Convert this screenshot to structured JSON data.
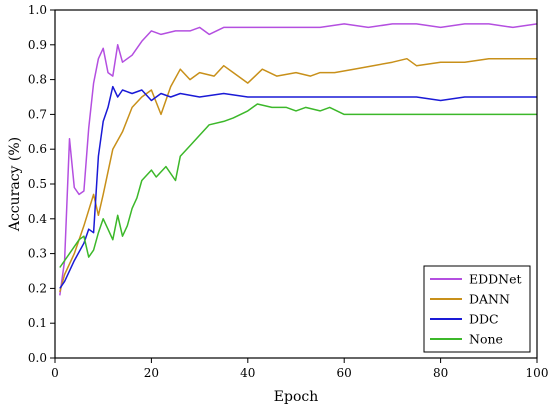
{
  "chart_data": {
    "type": "line",
    "xlabel": "Epoch",
    "ylabel": "Accuracy (%)",
    "xlim": [
      0,
      100
    ],
    "ylim": [
      0.0,
      1.0
    ],
    "xticks": [
      0,
      20,
      40,
      60,
      80,
      100
    ],
    "yticks": [
      0.0,
      0.1,
      0.2,
      0.3,
      0.4,
      0.5,
      0.6,
      0.7,
      0.8,
      0.9,
      1.0
    ],
    "ytick_labels": [
      "0.0",
      "0.1",
      "0.2",
      "0.3",
      "0.4",
      "0.5",
      "0.6",
      "0.7",
      "0.8",
      "0.9",
      "1.0"
    ],
    "legend_position": "bottom-right",
    "grid": false,
    "series": [
      {
        "name": "EDDNet",
        "color": "#b44fe0",
        "x": [
          1,
          2,
          3,
          4,
          5,
          6,
          7,
          8,
          9,
          10,
          11,
          12,
          13,
          14,
          15,
          16,
          18,
          20,
          22,
          25,
          28,
          30,
          32,
          35,
          40,
          45,
          50,
          55,
          60,
          65,
          70,
          75,
          80,
          85,
          90,
          95,
          100
        ],
        "y": [
          0.18,
          0.28,
          0.63,
          0.49,
          0.47,
          0.48,
          0.66,
          0.79,
          0.86,
          0.89,
          0.82,
          0.81,
          0.9,
          0.85,
          0.86,
          0.87,
          0.91,
          0.94,
          0.93,
          0.94,
          0.94,
          0.95,
          0.93,
          0.95,
          0.95,
          0.95,
          0.95,
          0.95,
          0.96,
          0.95,
          0.96,
          0.96,
          0.95,
          0.96,
          0.96,
          0.95,
          0.96
        ]
      },
      {
        "name": "DANN",
        "color": "#c8901a",
        "x": [
          1,
          2,
          4,
          6,
          8,
          9,
          10,
          12,
          14,
          16,
          18,
          20,
          22,
          24,
          26,
          28,
          30,
          33,
          35,
          37,
          40,
          43,
          46,
          50,
          53,
          55,
          58,
          62,
          66,
          70,
          73,
          75,
          80,
          85,
          90,
          95,
          100
        ],
        "y": [
          0.19,
          0.24,
          0.3,
          0.38,
          0.47,
          0.41,
          0.47,
          0.6,
          0.65,
          0.72,
          0.75,
          0.77,
          0.7,
          0.78,
          0.83,
          0.8,
          0.82,
          0.81,
          0.84,
          0.82,
          0.79,
          0.83,
          0.81,
          0.82,
          0.81,
          0.82,
          0.82,
          0.83,
          0.84,
          0.85,
          0.86,
          0.84,
          0.85,
          0.85,
          0.86,
          0.86,
          0.86
        ]
      },
      {
        "name": "DDC",
        "color": "#1a1ad6",
        "x": [
          1,
          2,
          4,
          6,
          7,
          8,
          9,
          10,
          11,
          12,
          13,
          14,
          16,
          18,
          20,
          22,
          24,
          26,
          30,
          35,
          40,
          45,
          50,
          55,
          60,
          65,
          70,
          75,
          80,
          85,
          90,
          95,
          100
        ],
        "y": [
          0.2,
          0.22,
          0.28,
          0.33,
          0.37,
          0.36,
          0.58,
          0.68,
          0.72,
          0.78,
          0.75,
          0.77,
          0.76,
          0.77,
          0.74,
          0.76,
          0.75,
          0.76,
          0.75,
          0.76,
          0.75,
          0.75,
          0.75,
          0.75,
          0.75,
          0.75,
          0.75,
          0.75,
          0.74,
          0.75,
          0.75,
          0.75,
          0.75
        ]
      },
      {
        "name": "None",
        "color": "#3cb82a",
        "x": [
          1,
          3,
          5,
          6,
          7,
          8,
          9,
          10,
          11,
          12,
          13,
          14,
          15,
          16,
          17,
          18,
          20,
          21,
          23,
          25,
          26,
          28,
          30,
          32,
          35,
          37,
          40,
          42,
          45,
          48,
          50,
          52,
          55,
          57,
          60,
          65,
          70,
          75,
          80,
          85,
          90,
          95,
          100
        ],
        "y": [
          0.26,
          0.3,
          0.34,
          0.35,
          0.29,
          0.31,
          0.36,
          0.4,
          0.37,
          0.34,
          0.41,
          0.35,
          0.38,
          0.43,
          0.46,
          0.51,
          0.54,
          0.52,
          0.55,
          0.51,
          0.58,
          0.61,
          0.64,
          0.67,
          0.68,
          0.69,
          0.71,
          0.73,
          0.72,
          0.72,
          0.71,
          0.72,
          0.71,
          0.72,
          0.7,
          0.7,
          0.7,
          0.7,
          0.7,
          0.7,
          0.7,
          0.7,
          0.7
        ]
      }
    ]
  }
}
